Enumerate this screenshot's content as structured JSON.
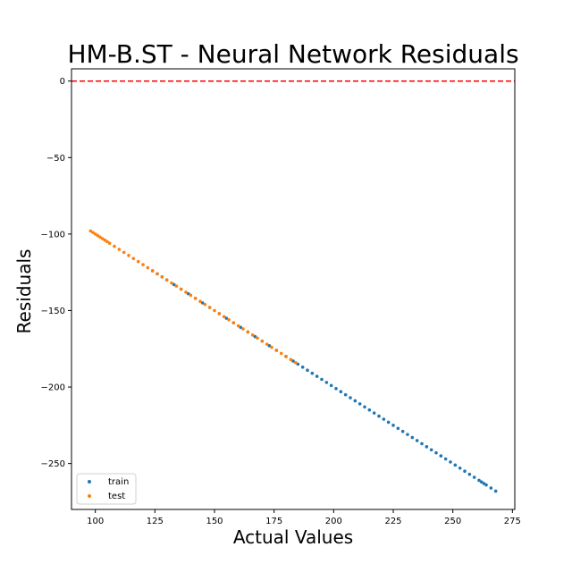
{
  "chart_data": {
    "type": "scatter",
    "title": "HM-B.ST - Neural Network Residuals",
    "xlabel": "Actual Values",
    "ylabel": "Residuals",
    "xlim": [
      90,
      276
    ],
    "ylim": [
      -280,
      8
    ],
    "xticks": [
      100,
      125,
      150,
      175,
      200,
      225,
      250,
      275
    ],
    "yticks": [
      0,
      -50,
      -100,
      -150,
      -200,
      -250
    ],
    "xtick_labels": [
      "100",
      "125",
      "150",
      "175",
      "200",
      "225",
      "250",
      "275"
    ],
    "ytick_labels": [
      "0",
      "−50",
      "−100",
      "−150",
      "−200",
      "−250"
    ],
    "reference_line": {
      "y": 0,
      "color": "#ff0000",
      "style": "dashed"
    },
    "legend_position": "lower-left",
    "grid": false,
    "series": [
      {
        "name": "train",
        "color": "#1f77b4",
        "points": [
          [
            124,
            -124
          ],
          [
            126,
            -126
          ],
          [
            128,
            -128
          ],
          [
            130,
            -130
          ],
          [
            133,
            -133
          ],
          [
            136,
            -136
          ],
          [
            139,
            -139
          ],
          [
            142,
            -142
          ],
          [
            145,
            -145
          ],
          [
            148,
            -148
          ],
          [
            152,
            -152
          ],
          [
            155,
            -155
          ],
          [
            158,
            -158
          ],
          [
            161,
            -161
          ],
          [
            164,
            -164
          ],
          [
            167,
            -167
          ],
          [
            170,
            -170
          ],
          [
            173,
            -173
          ],
          [
            176,
            -176
          ],
          [
            180,
            -180
          ],
          [
            183,
            -183
          ],
          [
            185,
            -185
          ],
          [
            187,
            -187
          ],
          [
            189,
            -189
          ],
          [
            191,
            -191
          ],
          [
            193,
            -193
          ],
          [
            195,
            -195
          ],
          [
            197,
            -197
          ],
          [
            199,
            -199
          ],
          [
            201,
            -201
          ],
          [
            203,
            -203
          ],
          [
            205,
            -205
          ],
          [
            207,
            -207
          ],
          [
            209,
            -209
          ],
          [
            211,
            -211
          ],
          [
            213,
            -213
          ],
          [
            215,
            -215
          ],
          [
            217,
            -217
          ],
          [
            219,
            -219
          ],
          [
            221,
            -221
          ],
          [
            223,
            -223
          ],
          [
            225,
            -225
          ],
          [
            227,
            -227
          ],
          [
            229,
            -229
          ],
          [
            231,
            -231
          ],
          [
            233,
            -233
          ],
          [
            235,
            -235
          ],
          [
            237,
            -237
          ],
          [
            239,
            -239
          ],
          [
            241,
            -241
          ],
          [
            243,
            -243
          ],
          [
            245,
            -245
          ],
          [
            247,
            -247
          ],
          [
            249,
            -249
          ],
          [
            251,
            -251
          ],
          [
            253,
            -253
          ],
          [
            255,
            -255
          ],
          [
            257,
            -257
          ],
          [
            259,
            -259
          ],
          [
            261,
            -261
          ],
          [
            262,
            -262
          ],
          [
            263,
            -263
          ],
          [
            264,
            -264
          ],
          [
            266,
            -266
          ],
          [
            268,
            -268
          ]
        ]
      },
      {
        "name": "test",
        "color": "#ff7f0e",
        "points": [
          [
            98,
            -98
          ],
          [
            99,
            -99
          ],
          [
            100,
            -100
          ],
          [
            101,
            -101
          ],
          [
            102,
            -102
          ],
          [
            103,
            -103
          ],
          [
            104,
            -104
          ],
          [
            105,
            -105
          ],
          [
            106,
            -106
          ],
          [
            108,
            -108
          ],
          [
            110,
            -110
          ],
          [
            112,
            -112
          ],
          [
            114,
            -114
          ],
          [
            116,
            -116
          ],
          [
            118,
            -118
          ],
          [
            120,
            -120
          ],
          [
            122,
            -122
          ],
          [
            124,
            -124
          ],
          [
            126,
            -126
          ],
          [
            128,
            -128
          ],
          [
            130,
            -130
          ],
          [
            132,
            -132
          ],
          [
            134,
            -134
          ],
          [
            136,
            -136
          ],
          [
            138,
            -138
          ],
          [
            140,
            -140
          ],
          [
            142,
            -142
          ],
          [
            144,
            -144
          ],
          [
            146,
            -146
          ],
          [
            148,
            -148
          ],
          [
            150,
            -150
          ],
          [
            152,
            -152
          ],
          [
            154,
            -154
          ],
          [
            156,
            -156
          ],
          [
            158,
            -158
          ],
          [
            160,
            -160
          ],
          [
            162,
            -162
          ],
          [
            164,
            -164
          ],
          [
            166,
            -166
          ],
          [
            168,
            -168
          ],
          [
            170,
            -170
          ],
          [
            172,
            -172
          ],
          [
            174,
            -174
          ],
          [
            176,
            -176
          ],
          [
            178,
            -178
          ],
          [
            180,
            -180
          ],
          [
            182,
            -182
          ],
          [
            184,
            -184
          ]
        ]
      }
    ]
  }
}
